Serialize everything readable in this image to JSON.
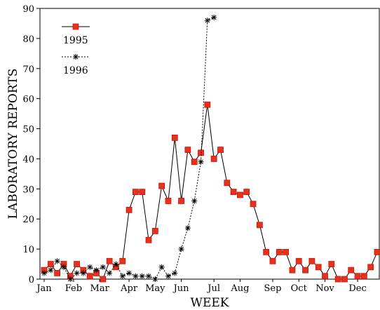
{
  "chart_data": {
    "type": "line",
    "xlabel": "WEEK",
    "ylabel": "LABORATORY REPORTS",
    "ylim": [
      0,
      90
    ],
    "xlim": [
      1,
      52
    ],
    "yticks": [
      0,
      10,
      20,
      30,
      40,
      50,
      60,
      70,
      80,
      90
    ],
    "month_labels": [
      {
        "label": "Jan",
        "week": 1
      },
      {
        "label": "Feb",
        "week": 5.5
      },
      {
        "label": "Mar",
        "week": 9.5
      },
      {
        "label": "Apr",
        "week": 14
      },
      {
        "label": "May",
        "week": 18
      },
      {
        "label": "Jun",
        "week": 22
      },
      {
        "label": "Jul",
        "week": 27
      },
      {
        "label": "Aug",
        "week": 31
      },
      {
        "label": "Sep",
        "week": 36
      },
      {
        "label": "Oct",
        "week": 40
      },
      {
        "label": "Nov",
        "week": 44
      },
      {
        "label": "Dec",
        "week": 49
      }
    ],
    "legend_position": "top-left",
    "grid": false,
    "series": [
      {
        "name": "1995",
        "style": "solid",
        "marker": "square",
        "marker_color": "#e8301c",
        "line_color": "#000000",
        "x": [
          1,
          2,
          3,
          4,
          5,
          6,
          7,
          8,
          9,
          10,
          11,
          12,
          13,
          14,
          15,
          16,
          17,
          18,
          19,
          20,
          21,
          22,
          23,
          24,
          25,
          26,
          27,
          28,
          29,
          30,
          31,
          32,
          33,
          34,
          35,
          36,
          37,
          38,
          39,
          40,
          41,
          42,
          43,
          44,
          45,
          46,
          47,
          48,
          49,
          50,
          51,
          52
        ],
        "y": [
          3,
          5,
          2,
          5,
          1,
          5,
          3,
          1,
          2,
          0,
          6,
          4,
          6,
          23,
          29,
          29,
          13,
          16,
          31,
          26,
          47,
          26,
          43,
          39,
          42,
          58,
          40,
          43,
          32,
          29,
          28,
          29,
          25,
          18,
          9,
          6,
          9,
          9,
          3,
          6,
          3,
          6,
          4,
          1,
          5,
          0,
          0,
          3,
          1,
          1,
          4,
          9
        ]
      },
      {
        "name": "1996",
        "style": "dotted",
        "marker": "asterisk",
        "marker_color": "#000000",
        "line_color": "#000000",
        "x": [
          1,
          2,
          3,
          4,
          5,
          6,
          7,
          8,
          9,
          10,
          11,
          12,
          13,
          14,
          15,
          16,
          17,
          18,
          19,
          20,
          21,
          22,
          23,
          24,
          25,
          26,
          27
        ],
        "y": [
          2,
          3,
          6,
          4,
          0,
          2,
          2,
          4,
          3,
          4,
          2,
          5,
          1,
          2,
          1,
          1,
          1,
          0,
          4,
          1,
          2,
          10,
          17,
          26,
          39,
          86,
          87
        ]
      }
    ]
  }
}
